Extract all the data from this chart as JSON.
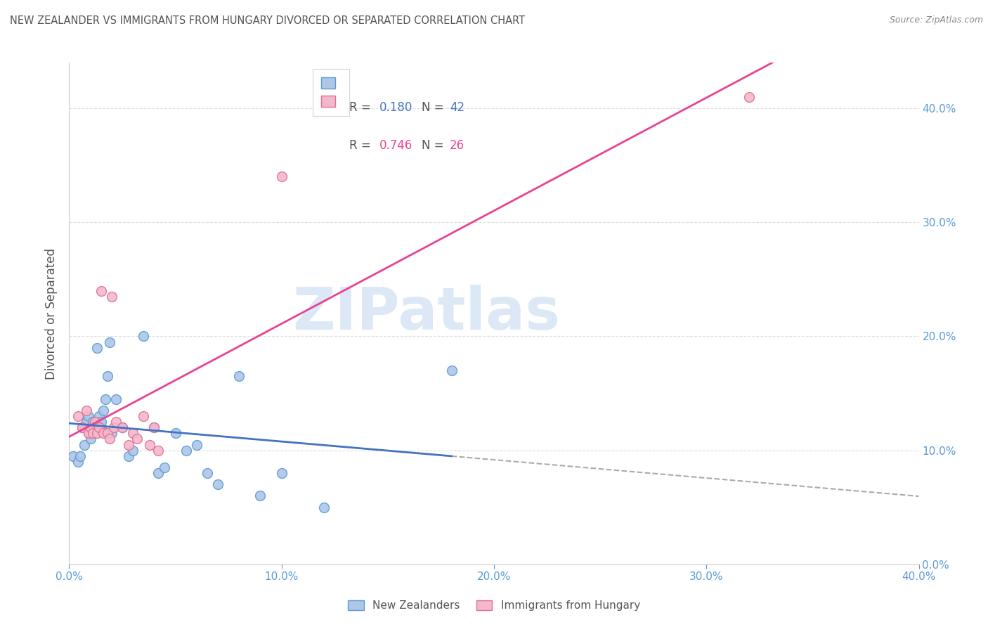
{
  "title": "NEW ZEALANDER VS IMMIGRANTS FROM HUNGARY DIVORCED OR SEPARATED CORRELATION CHART",
  "source": "Source: ZipAtlas.com",
  "ylabel": "Divorced or Separated",
  "legend1_R": "0.180",
  "legend1_N": "42",
  "legend2_R": "0.746",
  "legend2_N": "26",
  "nz_color": "#aec6e8",
  "nz_edge_color": "#5b9bd5",
  "nz_line_color": "#4472c4",
  "hungary_color": "#f4b8cc",
  "hungary_edge_color": "#e07090",
  "hungary_line_color": "#e84393",
  "dashed_line_color": "#aaaaaa",
  "watermark_text": "ZIPatlas",
  "watermark_color": "#dce8f5",
  "nz_points_x": [
    0.002,
    0.004,
    0.005,
    0.006,
    0.007,
    0.008,
    0.009,
    0.009,
    0.01,
    0.01,
    0.011,
    0.011,
    0.012,
    0.012,
    0.013,
    0.013,
    0.014,
    0.015,
    0.015,
    0.016,
    0.017,
    0.018,
    0.019,
    0.02,
    0.022,
    0.025,
    0.028,
    0.03,
    0.035,
    0.04,
    0.042,
    0.045,
    0.05,
    0.055,
    0.06,
    0.065,
    0.07,
    0.08,
    0.09,
    0.1,
    0.12,
    0.18
  ],
  "nz_points_y": [
    0.095,
    0.09,
    0.095,
    0.12,
    0.105,
    0.125,
    0.13,
    0.115,
    0.11,
    0.12,
    0.125,
    0.115,
    0.12,
    0.12,
    0.125,
    0.19,
    0.13,
    0.12,
    0.125,
    0.135,
    0.145,
    0.165,
    0.195,
    0.115,
    0.145,
    0.12,
    0.095,
    0.1,
    0.2,
    0.12,
    0.08,
    0.085,
    0.115,
    0.1,
    0.105,
    0.08,
    0.07,
    0.165,
    0.06,
    0.08,
    0.05,
    0.17
  ],
  "hu_points_x": [
    0.004,
    0.006,
    0.008,
    0.009,
    0.01,
    0.011,
    0.012,
    0.013,
    0.014,
    0.015,
    0.016,
    0.018,
    0.019,
    0.02,
    0.021,
    0.022,
    0.025,
    0.028,
    0.03,
    0.032,
    0.035,
    0.038,
    0.04,
    0.042,
    0.1,
    0.32
  ],
  "hu_points_y": [
    0.13,
    0.12,
    0.135,
    0.115,
    0.12,
    0.115,
    0.125,
    0.115,
    0.12,
    0.24,
    0.115,
    0.115,
    0.11,
    0.235,
    0.12,
    0.125,
    0.12,
    0.105,
    0.115,
    0.11,
    0.13,
    0.105,
    0.12,
    0.1,
    0.34,
    0.41
  ],
  "xlim": [
    0.0,
    0.4
  ],
  "ylim": [
    0.0,
    0.44
  ],
  "xtick_vals": [
    0.0,
    0.1,
    0.2,
    0.3,
    0.4
  ],
  "ytick_vals": [
    0.0,
    0.1,
    0.2,
    0.3,
    0.4
  ],
  "background_color": "#ffffff",
  "grid_color": "#dddddd",
  "tick_label_color": "#5b9bd5",
  "title_color": "#555555",
  "source_color": "#888888",
  "ylabel_color": "#555555",
  "legend_edge_color": "#cccccc",
  "bottom_label1": "New Zealanders",
  "bottom_label2": "Immigrants from Hungary"
}
